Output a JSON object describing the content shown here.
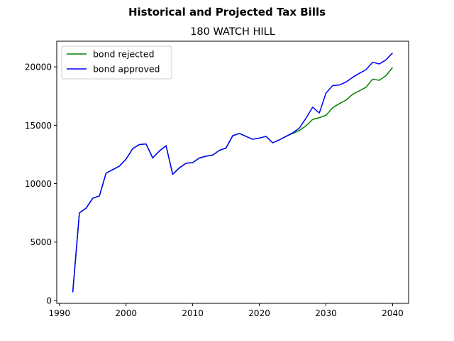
{
  "chart_data": {
    "type": "line",
    "suptitle": "Historical and Projected Tax Bills",
    "title": "180 WATCH HILL",
    "xlabel": "",
    "ylabel": "",
    "xlim": [
      1989.6,
      2042.4
    ],
    "ylim": [
      -250,
      22200
    ],
    "x_ticks": [
      1990,
      2000,
      2010,
      2020,
      2030,
      2040
    ],
    "y_ticks": [
      0,
      5000,
      10000,
      15000,
      20000
    ],
    "grid": false,
    "legend_position": "top-left",
    "series": [
      {
        "name": "bond rejected",
        "color": "#008000",
        "x": [
          1992,
          1993,
          1994,
          1995,
          1996,
          1997,
          1998,
          1999,
          2000,
          2001,
          2002,
          2003,
          2004,
          2005,
          2006,
          2007,
          2008,
          2009,
          2010,
          2011,
          2012,
          2013,
          2014,
          2015,
          2016,
          2017,
          2018,
          2019,
          2020,
          2021,
          2022,
          2023,
          2024,
          2025,
          2026,
          2027,
          2028,
          2029,
          2030,
          2031,
          2032,
          2033,
          2034,
          2035,
          2036,
          2037,
          2038,
          2039,
          2040
        ],
        "y": [
          700,
          7500,
          7900,
          8750,
          8950,
          10900,
          11200,
          11500,
          12100,
          13000,
          13350,
          13400,
          12200,
          12800,
          13250,
          10800,
          11350,
          11750,
          11800,
          12200,
          12350,
          12450,
          12850,
          13050,
          14100,
          14300,
          14050,
          13800,
          13900,
          14050,
          13500,
          13750,
          14050,
          14300,
          14550,
          14950,
          15500,
          15650,
          15850,
          16500,
          16850,
          17150,
          17650,
          17950,
          18250,
          18950,
          18850,
          19250,
          19950
        ]
      },
      {
        "name": "bond approved",
        "color": "#0000ff",
        "x": [
          1992,
          1993,
          1994,
          1995,
          1996,
          1997,
          1998,
          1999,
          2000,
          2001,
          2002,
          2003,
          2004,
          2005,
          2006,
          2007,
          2008,
          2009,
          2010,
          2011,
          2012,
          2013,
          2014,
          2015,
          2016,
          2017,
          2018,
          2019,
          2020,
          2021,
          2022,
          2023,
          2024,
          2025,
          2026,
          2027,
          2028,
          2029,
          2030,
          2031,
          2032,
          2033,
          2034,
          2035,
          2036,
          2037,
          2038,
          2039,
          2040
        ],
        "y": [
          700,
          7500,
          7900,
          8750,
          8950,
          10900,
          11200,
          11500,
          12100,
          13000,
          13350,
          13400,
          12200,
          12800,
          13250,
          10800,
          11350,
          11750,
          11800,
          12200,
          12350,
          12450,
          12850,
          13050,
          14100,
          14300,
          14050,
          13800,
          13900,
          14050,
          13500,
          13750,
          14050,
          14350,
          14750,
          15600,
          16550,
          16050,
          17750,
          18400,
          18450,
          18700,
          19100,
          19450,
          19750,
          20400,
          20250,
          20600,
          21200
        ]
      }
    ]
  }
}
